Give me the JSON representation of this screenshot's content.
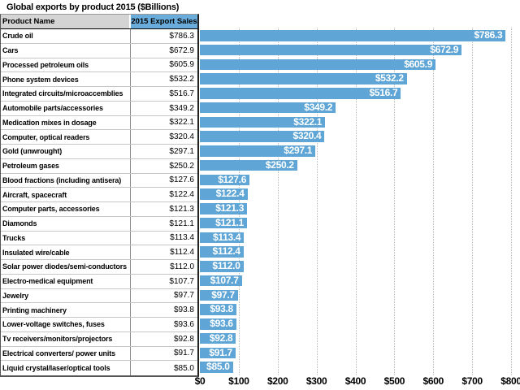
{
  "title": "Global exports by product 2015 ($Billions)",
  "table": {
    "columns": [
      "Product Name",
      "2015 Export Sales"
    ],
    "rows": [
      {
        "name": "Crude oil",
        "value": "$786.3"
      },
      {
        "name": "Cars",
        "value": "$672.9"
      },
      {
        "name": "Processed petroleum oils",
        "value": "$605.9"
      },
      {
        "name": "Phone system devices",
        "value": "$532.2"
      },
      {
        "name": "Integrated circuits/microaccemblies",
        "value": "$516.7"
      },
      {
        "name": "Automobile parts/accessories",
        "value": "$349.2"
      },
      {
        "name": "Medication mixes in dosage",
        "value": "$322.1"
      },
      {
        "name": "Computer, optical readers",
        "value": "$320.4"
      },
      {
        "name": "Gold (unwrought)",
        "value": "$297.1"
      },
      {
        "name": "Petroleum gases",
        "value": "$250.2"
      },
      {
        "name": "Blood fractions (including antisera)",
        "value": "$127.6"
      },
      {
        "name": "Aircraft, spacecraft",
        "value": "$122.4"
      },
      {
        "name": "Computer parts, accessories",
        "value": "$121.3"
      },
      {
        "name": "Diamonds",
        "value": "$121.1"
      },
      {
        "name": "Trucks",
        "value": "$113.4"
      },
      {
        "name": "Insulated wire/cable",
        "value": "$112.4"
      },
      {
        "name": "Solar power diodes/semi-conductors",
        "value": "$112.0"
      },
      {
        "name": "Electro-medical equipment",
        "value": "$107.7"
      },
      {
        "name": "Jewelry",
        "value": "$97.7"
      },
      {
        "name": "Printing machinery",
        "value": "$93.8"
      },
      {
        "name": "Lower-voltage switches, fuses",
        "value": "$93.6"
      },
      {
        "name": "Tv receivers/monitors/projectors",
        "value": "$92.8"
      },
      {
        "name": "Electrical converters/ power units",
        "value": "$91.7"
      },
      {
        "name": "Liquid crystal/laser/optical tools",
        "value": "$85.0"
      }
    ]
  },
  "chart_data": {
    "type": "bar",
    "orientation": "horizontal",
    "title": "Global exports by product 2015 ($Billions)",
    "categories": [
      "Crude oil",
      "Cars",
      "Processed petroleum oils",
      "Phone system devices",
      "Integrated circuits/microaccemblies",
      "Automobile parts/accessories",
      "Medication mixes in dosage",
      "Computer, optical readers",
      "Gold (unwrought)",
      "Petroleum gases",
      "Blood fractions (including antisera)",
      "Aircraft, spacecraft",
      "Computer parts, accessories",
      "Diamonds",
      "Trucks",
      "Insulated wire/cable",
      "Solar power diodes/semi-conductors",
      "Electro-medical equipment",
      "Jewelry",
      "Printing machinery",
      "Lower-voltage switches, fuses",
      "Tv receivers/monitors/projectors",
      "Electrical converters/ power units",
      "Liquid crystal/laser/optical tools"
    ],
    "values": [
      786.3,
      672.9,
      605.9,
      532.2,
      516.7,
      349.2,
      322.1,
      320.4,
      297.1,
      250.2,
      127.6,
      122.4,
      121.3,
      121.1,
      113.4,
      112.4,
      112.0,
      107.7,
      97.7,
      93.8,
      93.6,
      92.8,
      91.7,
      85.0
    ],
    "value_labels": [
      "$786.3",
      "$672.9",
      "$605.9",
      "$532.2",
      "$516.7",
      "$349.2",
      "$322.1",
      "$320.4",
      "$297.1",
      "$250.2",
      "$127.6",
      "$122.4",
      "$121.3",
      "$121.1",
      "$113.4",
      "$112.4",
      "$112.0",
      "$107.7",
      "$97.7",
      "$93.8",
      "$93.6",
      "$92.8",
      "$91.7",
      "$85.0"
    ],
    "xlabel": "",
    "ylabel": "",
    "xlim": [
      0,
      800
    ],
    "xtick_values": [
      0,
      100,
      200,
      300,
      400,
      500,
      600,
      700,
      800
    ],
    "xtick_labels": [
      "$0",
      "$100",
      "$200",
      "$300",
      "$400",
      "$500",
      "$600",
      "$700",
      "$800"
    ],
    "grid": "vertical-dotted",
    "legend": "none",
    "bar_label_position": "inside-end"
  },
  "colors": {
    "bar": "#5FA5D5",
    "bar_label_text": "#FFFFFF",
    "value_header_bg": "#69ACDB",
    "name_header_bg": "#D4D4D4",
    "gridline": "#BCBCBC",
    "text": "#000000"
  }
}
